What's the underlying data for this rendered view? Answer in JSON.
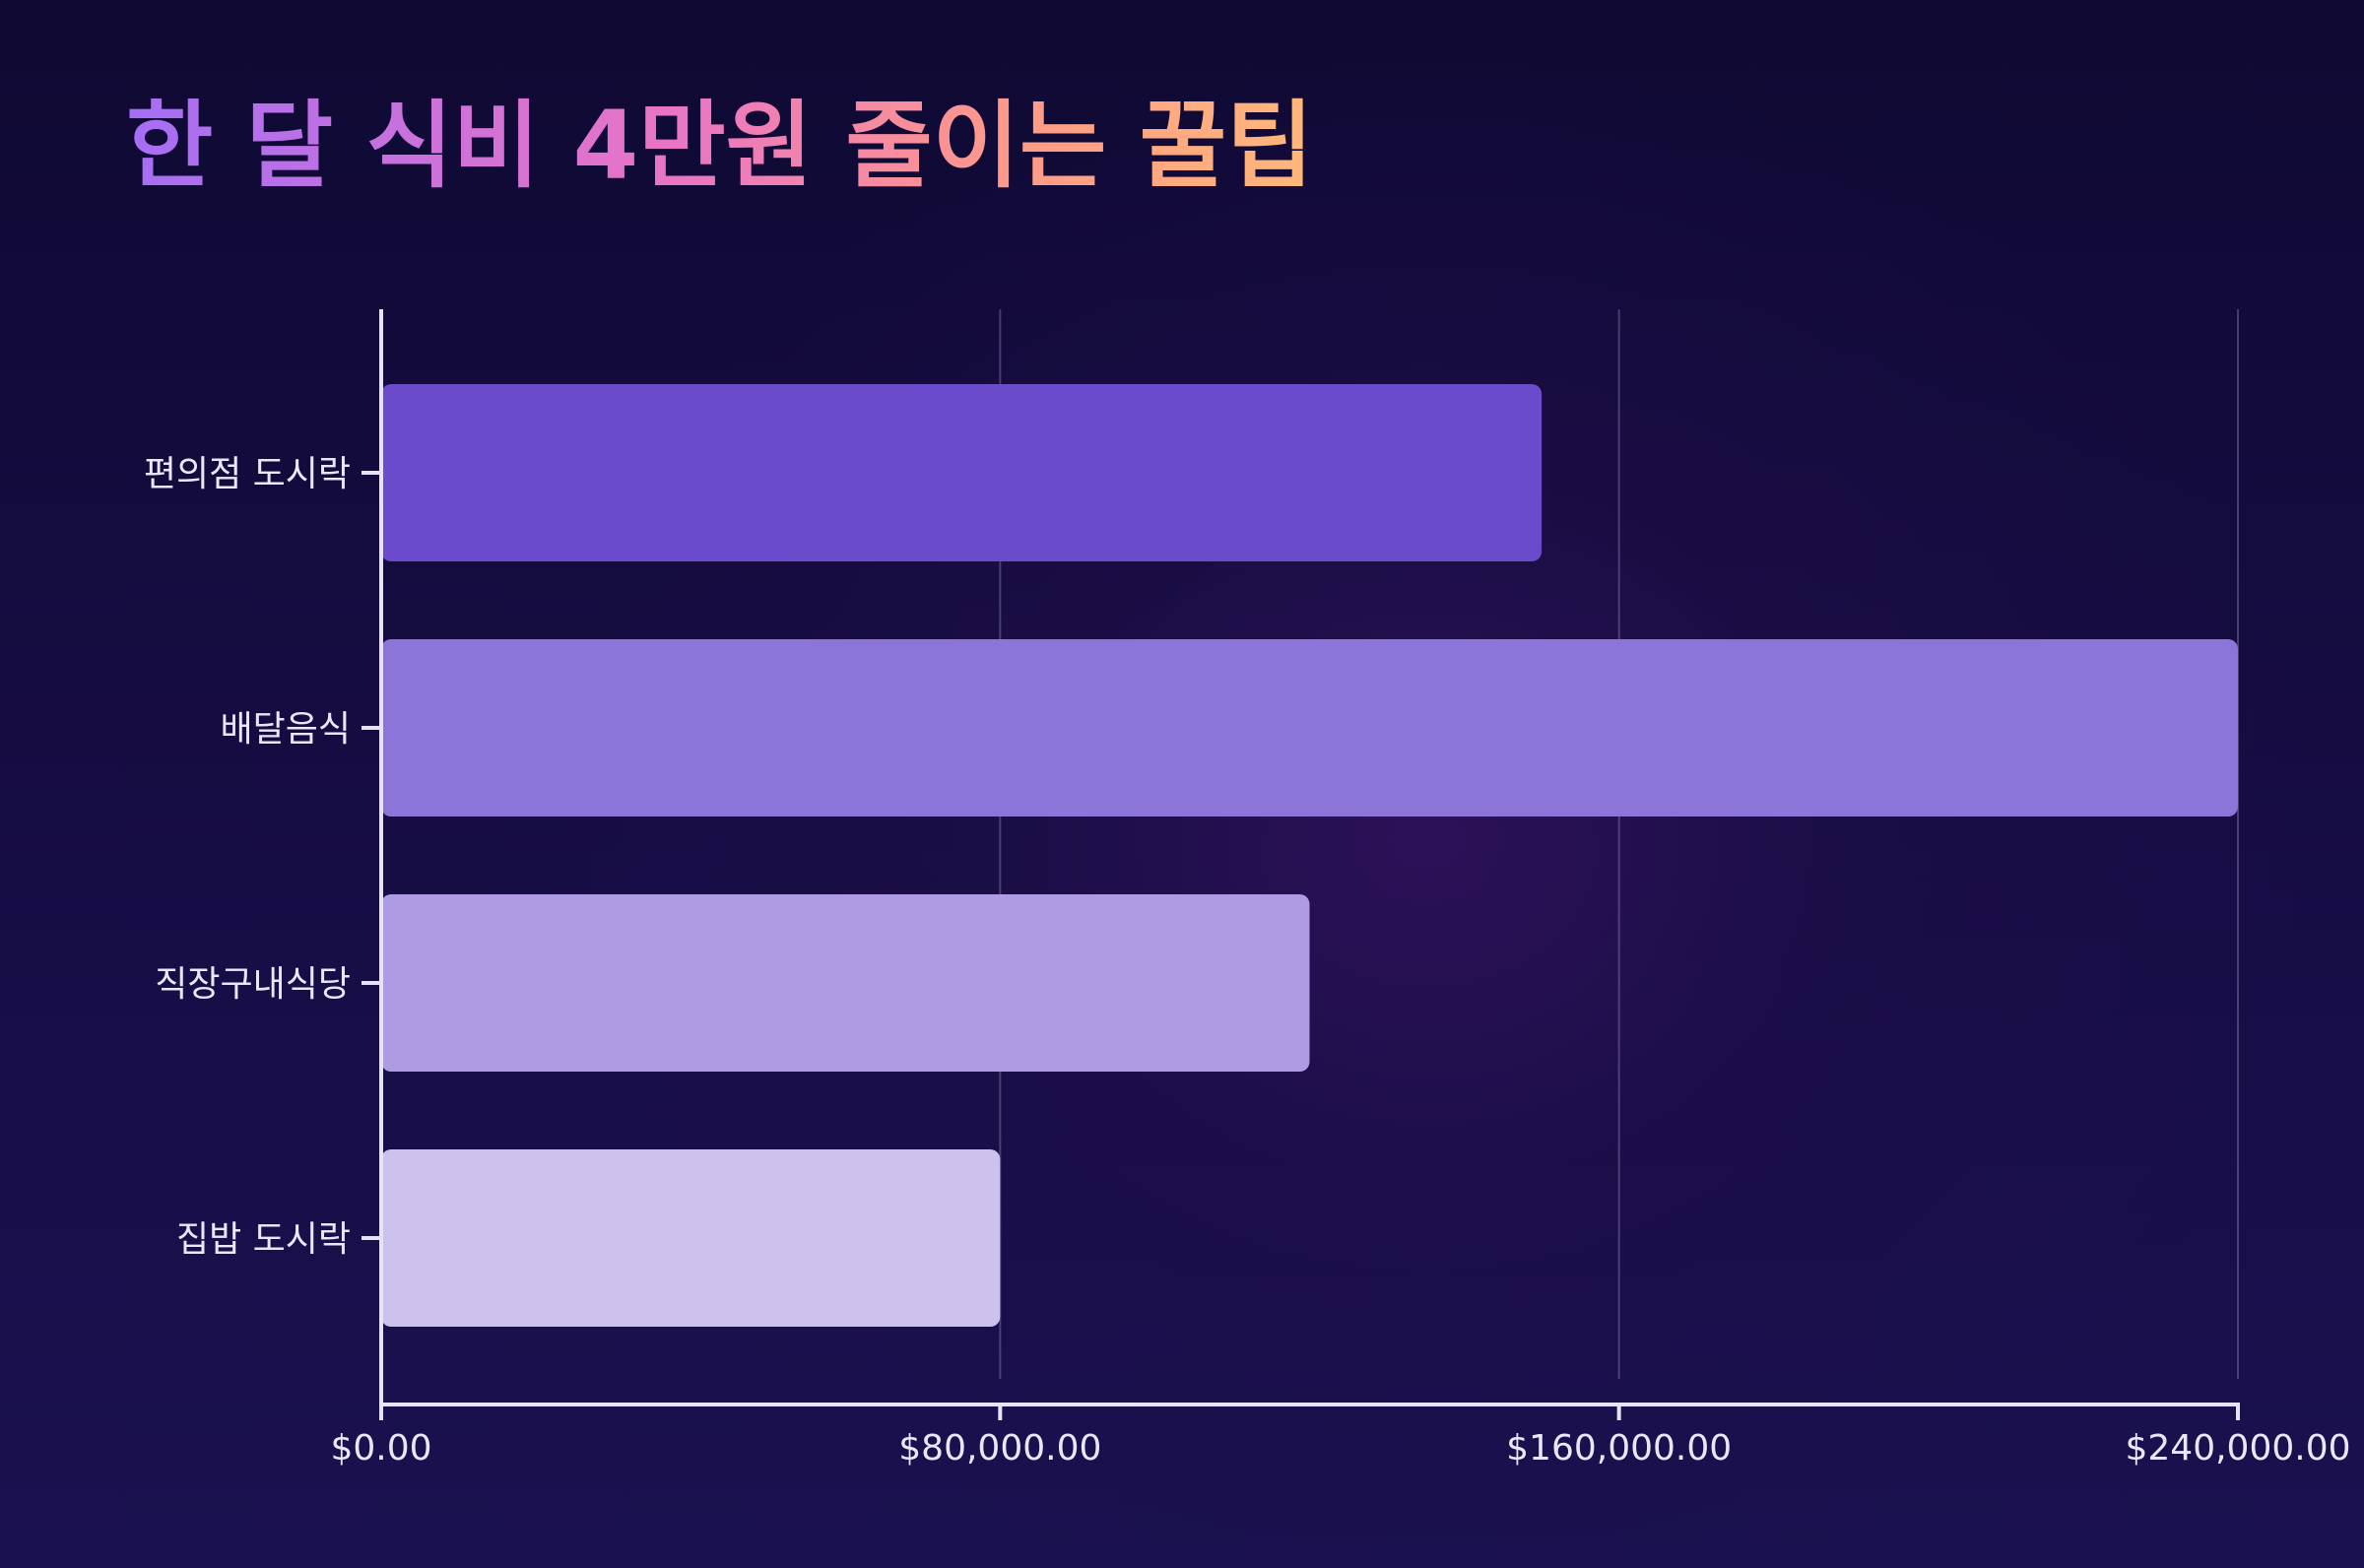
{
  "title": "한 달 식비 4만원 줄이는 꿀팁",
  "chart_data": {
    "type": "bar",
    "orientation": "horizontal",
    "title": "한 달 식비 4만원 줄이는 꿀팁",
    "categories": [
      "편의점 도시락",
      "배달음식",
      "직장구내식당",
      "집밥 도시락"
    ],
    "values": [
      150000,
      240000,
      120000,
      80000
    ],
    "xlim": [
      0,
      240000
    ],
    "xticks": [
      0,
      80000,
      160000,
      240000
    ],
    "xtick_labels": [
      "$0.00",
      "$80,000.00",
      "$160,000.00",
      "$240,000.00"
    ],
    "xlabel": "",
    "ylabel": "",
    "grid": "vertical",
    "legend": "none",
    "colors": [
      "#6a4bcc",
      "#8b75d8",
      "#af9be3",
      "#cdc2ee"
    ]
  }
}
